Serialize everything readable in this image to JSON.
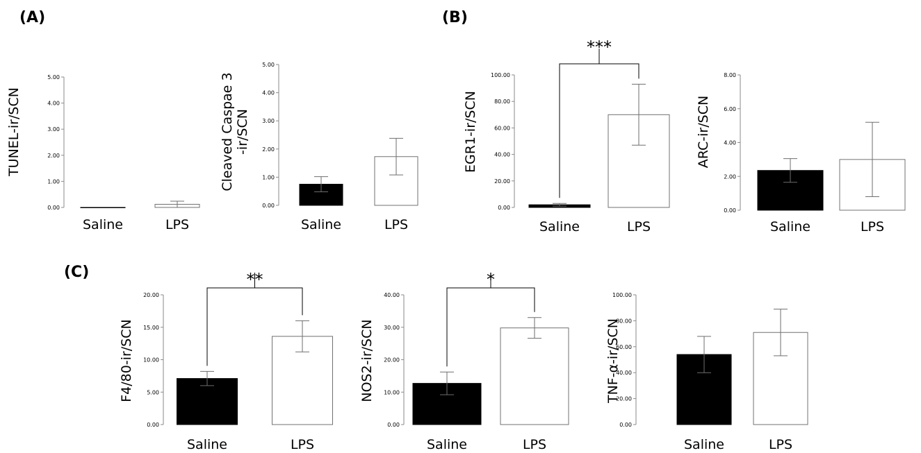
{
  "panel_labels": [
    "(A)",
    "(B)",
    "(C)"
  ],
  "colors": {
    "saline_bar": "#000000",
    "lps_bar": "#ffffff",
    "bar_outline": "#707070"
  },
  "chart_data": [
    {
      "type": "bar",
      "panel": "A",
      "ylabel": [
        "TUNEL-ir/SCN"
      ],
      "categories": [
        "Saline",
        "LPS"
      ],
      "values": [
        0.0,
        0.12
      ],
      "errors": [
        0.0,
        0.12
      ],
      "ylim": [
        0,
        5
      ],
      "yticks": [
        "0.00",
        "1.00",
        "2.00",
        "3.00",
        "4.00",
        "5.00"
      ],
      "significance": ""
    },
    {
      "type": "bar",
      "panel": "A",
      "ylabel": [
        "Cleaved Caspae 3",
        "-ir/SCN"
      ],
      "categories": [
        "Saline",
        "LPS"
      ],
      "values": [
        0.75,
        1.73
      ],
      "errors": [
        0.27,
        0.65
      ],
      "ylim": [
        0,
        5
      ],
      "yticks": [
        "0.00",
        "1.00",
        "2.00",
        "3.00",
        "4.00",
        "5.00"
      ],
      "significance": ""
    },
    {
      "type": "bar",
      "panel": "B",
      "ylabel": [
        "EGR1-ir/SCN"
      ],
      "categories": [
        "Saline",
        "LPS"
      ],
      "values": [
        2.0,
        70.0
      ],
      "errors": [
        1.0,
        23.0
      ],
      "ylim": [
        0,
        100
      ],
      "yticks": [
        "0.00",
        "20.00",
        "40.00",
        "60.00",
        "80.00",
        "100.00"
      ],
      "significance": "***"
    },
    {
      "type": "bar",
      "panel": "B",
      "ylabel": [
        "ARC-ir/SCN"
      ],
      "categories": [
        "Saline",
        "LPS"
      ],
      "values": [
        2.35,
        3.0
      ],
      "errors": [
        0.7,
        2.2
      ],
      "ylim": [
        0,
        8
      ],
      "yticks": [
        "0.00",
        "2.00",
        "4.00",
        "6.00",
        "8.00"
      ],
      "significance": ""
    },
    {
      "type": "bar",
      "panel": "C",
      "ylabel": [
        "F4/80-ir/SCN"
      ],
      "categories": [
        "Saline",
        "LPS"
      ],
      "values": [
        7.1,
        13.6
      ],
      "errors": [
        1.1,
        2.4
      ],
      "ylim": [
        0,
        20
      ],
      "yticks": [
        "0.00",
        "5.00",
        "10.00",
        "15.00",
        "20.00"
      ],
      "significance": "**"
    },
    {
      "type": "bar",
      "panel": "C",
      "ylabel": [
        "NOS2-ir/SCN"
      ],
      "categories": [
        "Saline",
        "LPS"
      ],
      "values": [
        12.7,
        29.8
      ],
      "errors": [
        3.5,
        3.2
      ],
      "ylim": [
        0,
        40
      ],
      "yticks": [
        "0.00",
        "10.00",
        "20.00",
        "30.00",
        "40.00"
      ],
      "significance": "*"
    },
    {
      "type": "bar",
      "panel": "C",
      "ylabel": [
        "TNF-α-ir/SCN"
      ],
      "categories": [
        "Saline",
        "LPS"
      ],
      "values": [
        54.0,
        71.0
      ],
      "errors": [
        14.0,
        18.0
      ],
      "ylim": [
        0,
        100
      ],
      "yticks": [
        "0.00",
        "20.00",
        "40.00",
        "60.00",
        "80.00",
        "100.00"
      ],
      "significance": ""
    }
  ]
}
